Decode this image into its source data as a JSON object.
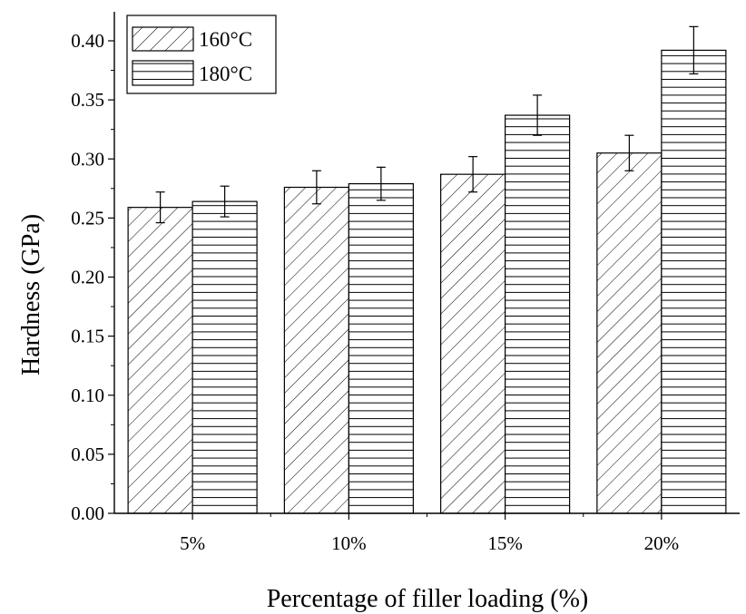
{
  "chart_data": {
    "type": "bar",
    "title": "",
    "xlabel": "Percentage of filler loading (%)",
    "ylabel": "Hardness (GPa)",
    "categories": [
      "5%",
      "10%",
      "15%",
      "20%"
    ],
    "ylim": [
      0,
      0.4
    ],
    "yticks": [
      "0.00",
      "0.05",
      "0.10",
      "0.15",
      "0.20",
      "0.25",
      "0.30",
      "0.35",
      "0.40"
    ],
    "grid": false,
    "legend_position": "top-left",
    "series": [
      {
        "name": "160°C",
        "pattern": "diagonal-hatch",
        "values": [
          0.259,
          0.276,
          0.287,
          0.305
        ],
        "errors": [
          0.013,
          0.014,
          0.015,
          0.015
        ]
      },
      {
        "name": "180°C",
        "pattern": "horizontal-hatch",
        "values": [
          0.264,
          0.279,
          0.337,
          0.392
        ],
        "errors": [
          0.013,
          0.014,
          0.017,
          0.02
        ]
      }
    ],
    "colors": {
      "stroke": "#000000",
      "background": "#ffffff"
    }
  }
}
